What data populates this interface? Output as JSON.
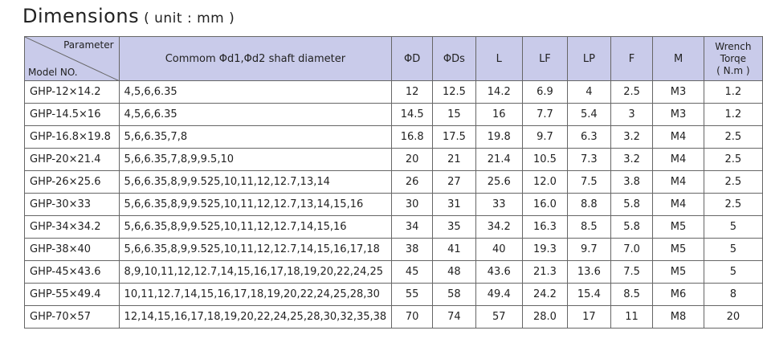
{
  "title": "Dimensions",
  "subtitle": "( unit : mm )",
  "header": {
    "corner_top": "Parameter",
    "corner_bottom": "Model NO.",
    "columns": [
      "Commom  Φd1,Φd2 shaft diameter",
      "ΦD",
      "ΦDs",
      "L",
      "LF",
      "LP",
      "F",
      "M",
      [
        "Wrench",
        "Torqe",
        "( N.m )"
      ]
    ]
  },
  "table": {
    "rows": [
      [
        "GHP-12×14.2",
        "4,5,6,6.35",
        "12",
        "12.5",
        "14.2",
        "6.9",
        "4",
        "2.5",
        "M3",
        "1.2"
      ],
      [
        "GHP-14.5×16",
        "4,5,6,6.35",
        "14.5",
        "15",
        "16",
        "7.7",
        "5.4",
        "3",
        "M3",
        "1.2"
      ],
      [
        "GHP-16.8×19.8",
        "5,6,6.35,7,8",
        "16.8",
        "17.5",
        "19.8",
        "9.7",
        "6.3",
        "3.2",
        "M4",
        "2.5"
      ],
      [
        "GHP-20×21.4",
        "5,6,6.35,7,8,9,9.5,10",
        "20",
        "21",
        "21.4",
        "10.5",
        "7.3",
        "3.2",
        "M4",
        "2.5"
      ],
      [
        "GHP-26×25.6",
        "5,6,6.35,8,9,9.525,10,11,12,12.7,13,14",
        "26",
        "27",
        "25.6",
        "12.0",
        "7.5",
        "3.8",
        "M4",
        "2.5"
      ],
      [
        "GHP-30×33",
        "5,6,6.35,8,9,9.525,10,11,12,12.7,13,14,15,16",
        "30",
        "31",
        "33",
        "16.0",
        "8.8",
        "5.8",
        "M4",
        "2.5"
      ],
      [
        "GHP-34×34.2",
        "5,6,6.35,8,9,9.525,10,11,12,12.7,14,15,16",
        "34",
        "35",
        "34.2",
        "16.3",
        "8.5",
        "5.8",
        "M5",
        "5"
      ],
      [
        "GHP-38×40",
        "5,6,6.35,8,9,9.525,10,11,12,12.7,14,15,16,17,18",
        "38",
        "41",
        "40",
        "19.3",
        "9.7",
        "7.0",
        "M5",
        "5"
      ],
      [
        "GHP-45×43.6",
        "8,9,10,11,12,12.7,14,15,16,17,18,19,20,22,24,25",
        "45",
        "48",
        "43.6",
        "21.3",
        "13.6",
        "7.5",
        "M5",
        "5"
      ],
      [
        "GHP-55×49.4",
        "10,11,12.7,14,15,16,17,18,19,20,22,24,25,28,30",
        "55",
        "58",
        "49.4",
        "24.2",
        "15.4",
        "8.5",
        "M6",
        "8"
      ],
      [
        "GHP-70×57",
        "12,14,15,16,17,18,19,20,22,24,25,28,30,32,35,38",
        "70",
        "74",
        "57",
        "28.0",
        "17",
        "11",
        "M8",
        "20"
      ]
    ]
  }
}
